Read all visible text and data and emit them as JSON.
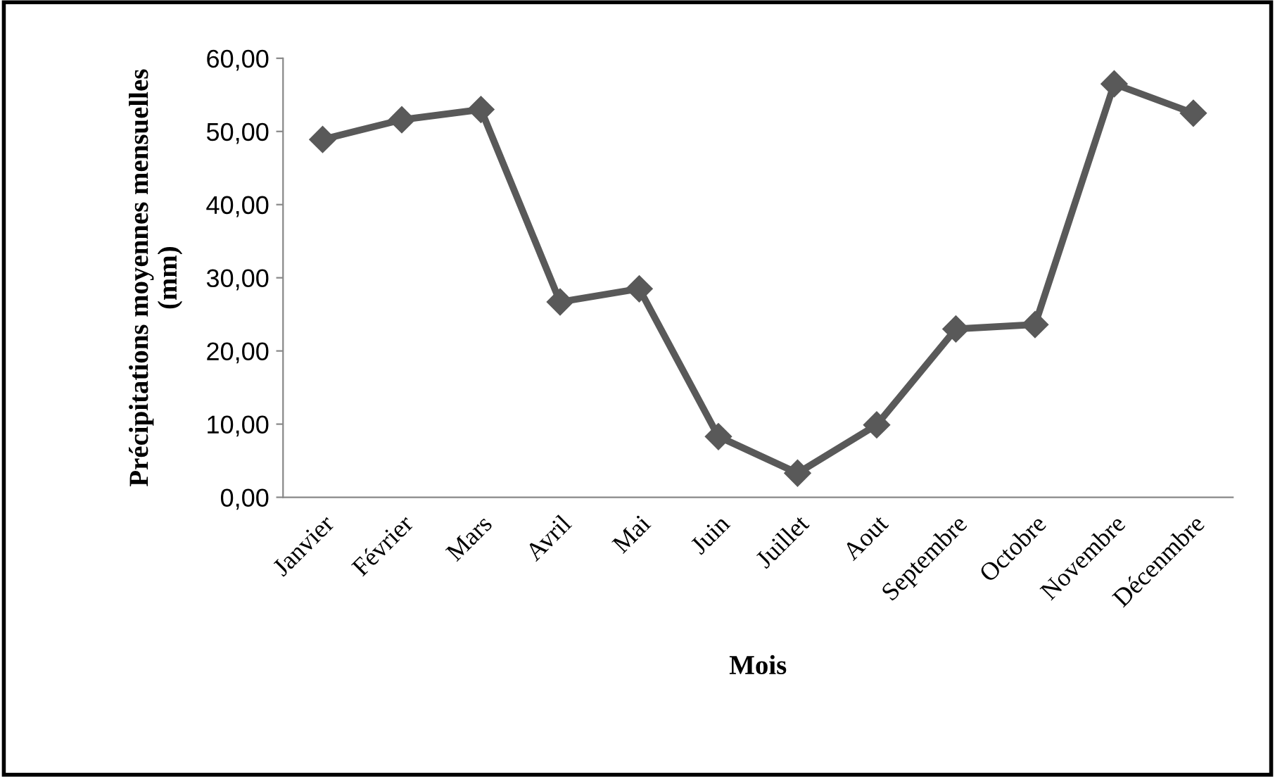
{
  "chart_data": {
    "type": "line",
    "xlabel": "Mois",
    "ylabel": "Précipitations moyennes mensuelles\n(mm)",
    "categories": [
      "Janvier",
      "Février",
      "Mars",
      "Avril",
      "Mai",
      "Juin",
      "Juillet",
      "Aout",
      "Septembre",
      "Octobre",
      "Novembre",
      "Décenmbre"
    ],
    "series": [
      {
        "color": "#595959",
        "values": [
          48.9,
          51.6,
          53.0,
          26.7,
          28.5,
          8.3,
          3.3,
          9.9,
          23.0,
          23.6,
          56.5,
          52.5
        ]
      }
    ],
    "ylim": [
      0,
      60
    ],
    "yticks": [
      {
        "value": 0,
        "label": "0,00"
      },
      {
        "value": 10,
        "label": "10,00"
      },
      {
        "value": 20,
        "label": "20,00"
      },
      {
        "value": 30,
        "label": "30,00"
      },
      {
        "value": 40,
        "label": "40,00"
      },
      {
        "value": 50,
        "label": "50,00"
      },
      {
        "value": 60,
        "label": "60,00"
      }
    ],
    "grid": false,
    "legend": false,
    "marker": "diamond",
    "line_style": "solid"
  }
}
